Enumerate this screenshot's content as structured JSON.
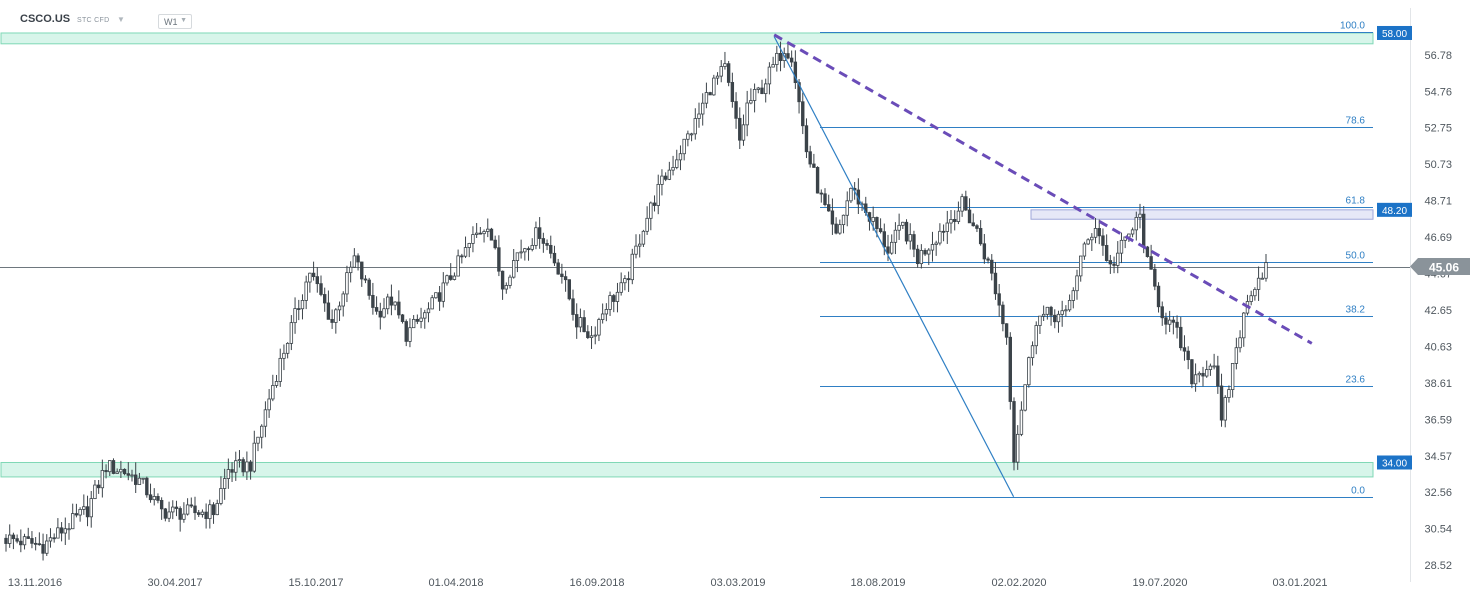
{
  "header": {
    "symbol": "CSCO.US",
    "tags": "STC CFD",
    "timeframe": "W1",
    "dropdown_icon": "chevron-down-icon"
  },
  "colors": {
    "bull": "#ffffff",
    "bear": "#3b4349",
    "wick": "#3b4349",
    "zone_fill": "#d7f5ea",
    "zone_stroke": "#7fd8b6",
    "fib": "#2f7fc4",
    "trend": "#6a4cb8",
    "resistance_fill": "#e6e8f7",
    "badge": "#1c73c7",
    "price_badge": "#8a939a"
  },
  "chart_data": {
    "type": "candlestick",
    "ylim": [
      28.52,
      58.8
    ],
    "y_ticks": [
      "56.78",
      "54.76",
      "52.75",
      "50.73",
      "48.71",
      "46.69",
      "44.67",
      "42.65",
      "40.63",
      "38.61",
      "36.59",
      "34.57",
      "32.56",
      "30.54",
      "28.52"
    ],
    "x_ticks": [
      "13.11.2016",
      "30.04.2017",
      "15.10.2017",
      "01.04.2018",
      "16.09.2018",
      "03.03.2019",
      "18.08.2019",
      "02.02.2020",
      "19.07.2020",
      "03.01.2021"
    ],
    "current_price": "45.06",
    "zones": [
      {
        "label": "58.00",
        "low": 57.4,
        "high": 58.0
      },
      {
        "label": "34.00",
        "low": 33.4,
        "high": 34.2
      }
    ],
    "resistance_box": {
      "label": "48.20",
      "low": 47.68,
      "high": 48.2
    },
    "fibonacci": [
      {
        "label": "100.0",
        "value": 58.05
      },
      {
        "label": "78.6",
        "value": 52.8
      },
      {
        "label": "61.8",
        "value": 48.35
      },
      {
        "label": "50.0",
        "value": 45.3
      },
      {
        "label": "38.2",
        "value": 42.3
      },
      {
        "label": "23.6",
        "value": 38.45
      },
      {
        "label": "0.0",
        "value": 32.3
      }
    ],
    "trendlines": [
      {
        "style": "solid",
        "from": [
          0.553,
          57.8
        ],
        "to": [
          0.724,
          32.3
        ]
      },
      {
        "style": "dashed",
        "from": [
          0.553,
          57.9
        ],
        "to": [
          0.937,
          40.8
        ]
      }
    ],
    "candles": []
  }
}
